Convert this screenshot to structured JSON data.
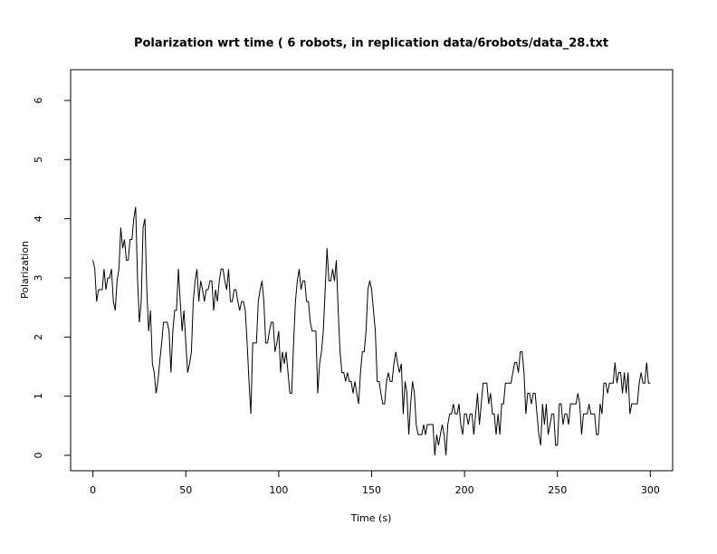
{
  "chart_data": {
    "type": "line",
    "title": "Polarization wrt time ( 6 robots, in replication  data/6robots/data_28.txt",
    "x_label": "Time (s)",
    "y_label": "Polarization",
    "color": "#000000",
    "xlim": [
      -12,
      312
    ],
    "ylim": [
      -0.26,
      6.52
    ],
    "xticks": [
      0,
      50,
      100,
      150,
      200,
      250,
      300
    ],
    "yticks": [
      0,
      1,
      2,
      3,
      4,
      5,
      6
    ],
    "x": [
      0,
      1,
      2,
      3,
      4,
      5,
      6,
      7,
      8,
      9,
      10,
      11,
      12,
      13,
      14,
      15,
      16,
      17,
      18,
      19,
      20,
      21,
      22,
      23,
      24,
      25,
      26,
      27,
      28,
      29,
      30,
      31,
      32,
      33,
      34,
      35,
      36,
      37,
      38,
      39,
      40,
      41,
      42,
      43,
      44,
      45,
      46,
      47,
      48,
      49,
      50,
      51,
      52,
      53,
      54,
      55,
      56,
      57,
      58,
      59,
      60,
      61,
      62,
      63,
      64,
      65,
      66,
      67,
      68,
      69,
      70,
      71,
      72,
      73,
      74,
      75,
      76,
      77,
      78,
      79,
      80,
      81,
      82,
      83,
      84,
      85,
      86,
      87,
      88,
      89,
      90,
      91,
      92,
      93,
      94,
      95,
      96,
      97,
      98,
      99,
      100,
      101,
      102,
      103,
      104,
      105,
      106,
      107,
      108,
      109,
      110,
      111,
      112,
      113,
      114,
      115,
      116,
      117,
      118,
      119,
      120,
      121,
      122,
      123,
      124,
      125,
      126,
      127,
      128,
      129,
      130,
      131,
      132,
      133,
      134,
      135,
      136,
      137,
      138,
      139,
      140,
      141,
      142,
      143,
      144,
      145,
      146,
      147,
      148,
      149,
      150,
      151,
      152,
      153,
      154,
      155,
      156,
      157,
      158,
      159,
      160,
      161,
      162,
      163,
      164,
      165,
      166,
      167,
      168,
      169,
      170,
      171,
      172,
      173,
      174,
      175,
      176,
      177,
      178,
      179,
      180,
      181,
      182,
      183,
      184,
      185,
      186,
      187,
      188,
      189,
      190,
      191,
      192,
      193,
      194,
      195,
      196,
      197,
      198,
      199,
      200,
      201,
      202,
      203,
      204,
      205,
      206,
      207,
      208,
      209,
      210,
      211,
      212,
      213,
      214,
      215,
      216,
      217,
      218,
      219,
      220,
      221,
      222,
      223,
      224,
      225,
      226,
      227,
      228,
      229,
      230,
      231,
      232,
      233,
      234,
      235,
      236,
      237,
      238,
      239,
      240,
      241,
      242,
      243,
      244,
      245,
      246,
      247,
      248,
      249,
      250,
      251,
      252,
      253,
      254,
      255,
      256,
      257,
      258,
      259,
      260,
      261,
      262,
      263,
      264,
      265,
      266,
      267,
      268,
      269,
      270,
      271,
      272,
      273,
      274,
      275,
      276,
      277,
      278,
      279,
      280,
      281,
      282,
      283,
      284,
      285,
      286,
      287,
      288,
      289,
      290,
      291,
      292,
      293,
      294,
      295,
      296,
      297,
      298,
      299,
      300
    ],
    "values": [
      3.3,
      3.15,
      2.6,
      2.8,
      2.8,
      2.8,
      3.15,
      2.8,
      3.0,
      3.0,
      3.15,
      2.6,
      2.45,
      2.95,
      3.15,
      3.85,
      3.5,
      3.65,
      3.3,
      3.3,
      3.65,
      3.65,
      4.0,
      4.2,
      3.0,
      2.25,
      2.6,
      3.85,
      4.0,
      2.8,
      2.1,
      2.45,
      1.55,
      1.4,
      1.05,
      1.25,
      1.6,
      1.9,
      2.25,
      2.25,
      2.25,
      2.1,
      1.4,
      2.1,
      2.45,
      2.45,
      3.15,
      2.6,
      2.1,
      2.45,
      1.9,
      1.4,
      1.55,
      1.75,
      2.6,
      2.95,
      3.15,
      2.6,
      2.95,
      2.8,
      2.6,
      2.8,
      2.8,
      2.95,
      2.95,
      2.45,
      2.8,
      2.6,
      2.95,
      3.15,
      3.15,
      2.95,
      2.8,
      3.15,
      2.6,
      2.6,
      2.8,
      2.8,
      2.6,
      2.45,
      2.6,
      2.6,
      2.45,
      1.9,
      1.25,
      0.7,
      1.9,
      1.9,
      1.9,
      2.6,
      2.8,
      2.95,
      2.6,
      1.9,
      1.9,
      2.1,
      2.25,
      2.25,
      1.75,
      1.9,
      2.1,
      1.4,
      1.75,
      1.55,
      1.75,
      1.4,
      1.05,
      1.05,
      1.9,
      2.6,
      2.95,
      3.15,
      2.8,
      2.95,
      2.95,
      2.6,
      2.6,
      2.25,
      2.1,
      2.1,
      2.1,
      1.05,
      1.55,
      1.75,
      2.1,
      2.8,
      3.5,
      2.95,
      2.95,
      3.15,
      2.95,
      3.3,
      2.45,
      1.75,
      1.4,
      1.4,
      1.25,
      1.4,
      1.25,
      1.25,
      1.05,
      1.25,
      1.05,
      0.87,
      1.4,
      1.75,
      1.75,
      2.1,
      2.8,
      2.95,
      2.8,
      2.45,
      2.1,
      1.25,
      1.25,
      1.05,
      0.87,
      0.87,
      1.25,
      1.4,
      1.25,
      1.25,
      1.55,
      1.75,
      1.55,
      1.4,
      1.55,
      0.7,
      1.25,
      1.05,
      0.35,
      0.87,
      1.25,
      1.05,
      0.52,
      0.35,
      0.35,
      0.35,
      0.52,
      0.35,
      0.52,
      0.52,
      0.52,
      0.52,
      0.0,
      0.35,
      0.17,
      0.35,
      0.52,
      0.35,
      0.0,
      0.52,
      0.7,
      0.7,
      0.87,
      0.7,
      0.7,
      0.87,
      0.52,
      0.35,
      0.7,
      0.7,
      0.52,
      0.7,
      0.7,
      0.35,
      0.7,
      1.05,
      0.52,
      0.87,
      1.22,
      1.22,
      1.22,
      0.87,
      1.05,
      0.7,
      0.7,
      0.35,
      0.7,
      0.35,
      0.87,
      0.87,
      1.22,
      1.22,
      1.22,
      1.22,
      1.4,
      1.57,
      1.57,
      1.4,
      1.75,
      1.75,
      1.4,
      0.7,
      1.05,
      1.05,
      0.87,
      1.05,
      1.05,
      0.7,
      0.35,
      0.17,
      0.87,
      0.52,
      0.87,
      0.35,
      0.52,
      0.7,
      0.7,
      0.17,
      0.17,
      0.87,
      0.87,
      0.52,
      0.7,
      0.7,
      0.52,
      0.87,
      0.87,
      0.87,
      0.87,
      1.05,
      0.87,
      0.35,
      0.7,
      0.7,
      0.7,
      0.87,
      0.7,
      0.7,
      0.7,
      0.35,
      0.35,
      0.87,
      0.7,
      1.22,
      1.22,
      1.05,
      1.22,
      1.22,
      1.22,
      1.57,
      1.22,
      1.4,
      1.4,
      1.05,
      1.4,
      1.05,
      1.4,
      0.7,
      0.87,
      0.87,
      0.87,
      0.87,
      1.22,
      1.4,
      1.22,
      1.22,
      1.57,
      1.22,
      1.22
    ]
  }
}
